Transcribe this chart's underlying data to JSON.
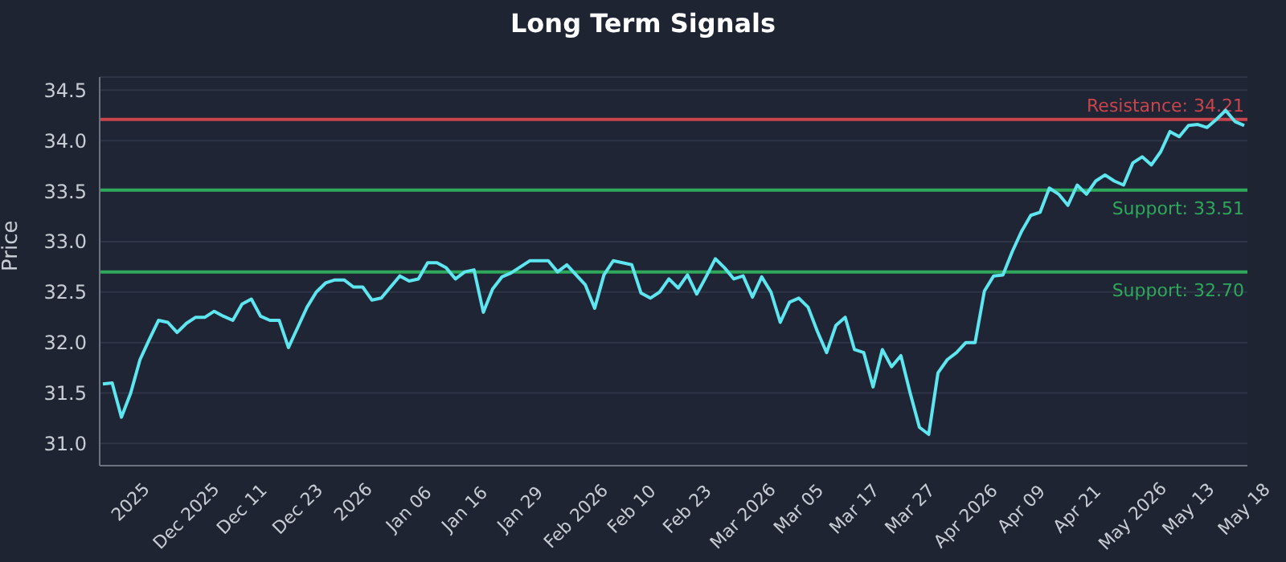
{
  "chart_data": {
    "type": "line",
    "title": "Long Term Signals",
    "ylabel": "Price",
    "categories": [
      null,
      null,
      null,
      "2025",
      null,
      null,
      null,
      null,
      null,
      "Dec 2025",
      null,
      null,
      null,
      null,
      null,
      "Dec 11",
      null,
      null,
      null,
      null,
      null,
      "Dec 23",
      null,
      null,
      null,
      null,
      null,
      "2026",
      null,
      null,
      null,
      null,
      null,
      "Jan 06",
      null,
      null,
      null,
      null,
      null,
      "Jan 16",
      null,
      null,
      null,
      null,
      null,
      "Jan 29",
      null,
      null,
      null,
      null,
      null,
      "Feb 2026",
      null,
      null,
      null,
      null,
      null,
      "Feb 10",
      null,
      null,
      null,
      null,
      null,
      "Feb 23",
      null,
      null,
      null,
      null,
      null,
      "Mar 2026",
      null,
      null,
      null,
      null,
      null,
      "Mar 05",
      null,
      null,
      null,
      null,
      null,
      "Mar 17",
      null,
      null,
      null,
      null,
      null,
      "Mar 27",
      null,
      null,
      null,
      null,
      null,
      "Apr 2026",
      null,
      null,
      null,
      null,
      null,
      "Apr 09",
      null,
      null,
      null,
      null,
      null,
      "Apr 21",
      null,
      null,
      null,
      null,
      null,
      "May 2026",
      null,
      null,
      null,
      null,
      null,
      "May 13",
      null,
      null,
      null,
      null,
      null,
      "May 18"
    ],
    "series": [
      {
        "color": "#5ee6f0",
        "values": [
          31.59,
          31.6,
          31.26,
          31.5,
          31.83,
          32.03,
          32.22,
          32.2,
          32.1,
          32.19,
          32.25,
          32.25,
          32.31,
          32.26,
          32.22,
          32.38,
          32.43,
          32.26,
          32.22,
          32.22,
          31.95,
          32.15,
          32.35,
          32.5,
          32.59,
          32.62,
          32.62,
          32.55,
          32.55,
          32.42,
          32.44,
          32.55,
          32.66,
          32.61,
          32.63,
          32.79,
          32.79,
          32.74,
          32.63,
          32.7,
          32.72,
          32.3,
          32.53,
          32.65,
          32.69,
          32.75,
          32.81,
          32.81,
          32.81,
          32.7,
          32.77,
          32.67,
          32.57,
          32.34,
          32.67,
          32.81,
          32.79,
          32.77,
          32.49,
          32.44,
          32.5,
          32.63,
          32.54,
          32.67,
          32.48,
          32.65,
          32.83,
          32.74,
          32.63,
          32.66,
          32.45,
          32.65,
          32.5,
          32.2,
          32.4,
          32.44,
          32.35,
          32.11,
          31.9,
          32.17,
          32.25,
          31.93,
          31.9,
          31.56,
          31.93,
          31.76,
          31.87,
          31.5,
          31.16,
          31.09,
          31.7,
          31.83,
          31.9,
          32.0,
          32.0,
          32.51,
          32.66,
          32.67,
          32.9,
          33.1,
          33.26,
          33.29,
          33.53,
          33.47,
          33.36,
          33.56,
          33.47,
          33.6,
          33.66,
          33.6,
          33.56,
          33.78,
          33.84,
          33.76,
          33.89,
          34.09,
          34.04,
          34.15,
          34.16,
          34.13,
          34.21,
          34.3,
          34.19,
          34.15
        ]
      }
    ],
    "ylim": [
      30.78,
      34.63
    ],
    "yticks": [
      {
        "value": 31,
        "label": "31.0"
      },
      {
        "value": 31.5,
        "label": "31.5"
      },
      {
        "value": 32,
        "label": "32.0"
      },
      {
        "value": 32.5,
        "label": "32.5"
      },
      {
        "value": 33,
        "label": "33.0"
      },
      {
        "value": 33.5,
        "label": "33.5"
      },
      {
        "value": 34,
        "label": "34.0"
      },
      {
        "value": 34.5,
        "label": "34.5"
      }
    ],
    "grid": "y",
    "marker": "none",
    "line_style": "solid",
    "ref_lines": [
      {
        "axis": "y",
        "value": 34.21,
        "label": "Resistance: 34.21",
        "color": "#c8454c"
      },
      {
        "axis": "y",
        "value": 33.51,
        "label": "Support: 33.51",
        "color": "#2ea85a"
      },
      {
        "axis": "y",
        "value": 32.7,
        "label": "Support: 32.70",
        "color": "#2ea85a"
      }
    ]
  }
}
